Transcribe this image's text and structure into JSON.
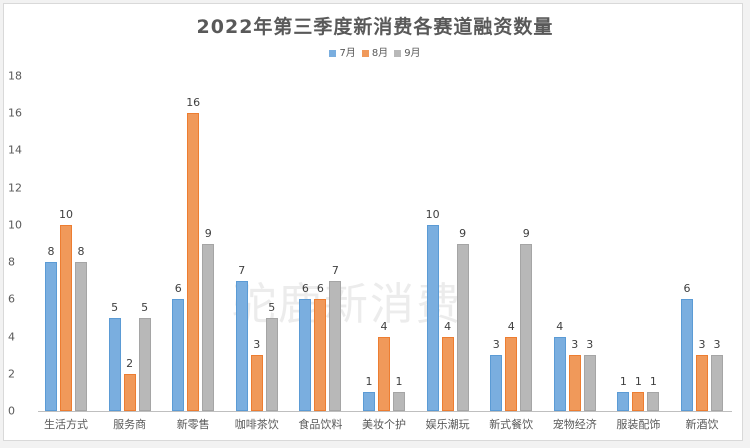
{
  "chart_data": {
    "type": "bar",
    "title": "2022年第三季度新消费各赛道融资数量",
    "xlabel": "",
    "ylabel": "",
    "ylim": [
      0,
      18
    ],
    "yticks": [
      0,
      2,
      4,
      6,
      8,
      10,
      12,
      14,
      16,
      18
    ],
    "grid": false,
    "legend_position": "top",
    "categories": [
      "生活方式",
      "服务商",
      "新零售",
      "咖啡茶饮",
      "食品饮料",
      "美妆个护",
      "娱乐潮玩",
      "新式餐饮",
      "宠物经济",
      "服装配饰",
      "新酒饮"
    ],
    "series": [
      {
        "name": "7月",
        "color": "#7aaedf",
        "values": [
          8,
          5,
          6,
          7,
          6,
          1,
          10,
          3,
          4,
          1,
          6
        ]
      },
      {
        "name": "8月",
        "color": "#f0995a",
        "values": [
          10,
          2,
          16,
          3,
          6,
          4,
          4,
          4,
          3,
          1,
          3
        ]
      },
      {
        "name": "9月",
        "color": "#b8b8b8",
        "values": [
          8,
          5,
          9,
          5,
          7,
          1,
          9,
          9,
          3,
          1,
          3
        ]
      }
    ],
    "watermark": "驼鹿新消费"
  }
}
